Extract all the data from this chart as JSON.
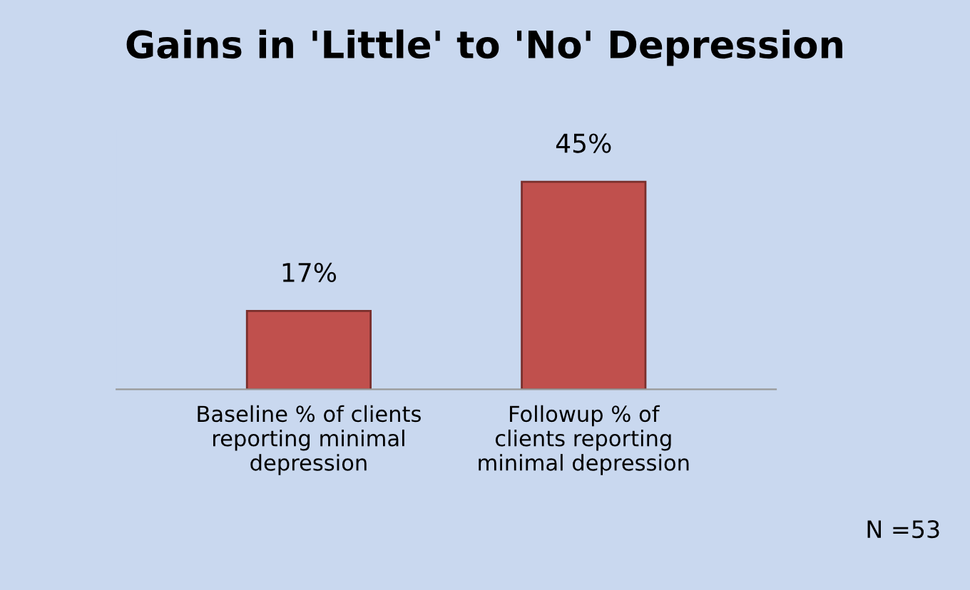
{
  "chart_data": {
    "type": "bar",
    "title": "Gains in 'Little' to 'No' Depression",
    "categories": [
      "Baseline % of clients\nreporting minimal\ndepression",
      "Followup % of\nclients reporting\nminimal depression"
    ],
    "values": [
      17,
      45
    ],
    "color": "#c0504d",
    "value_labels": [
      "17%",
      "45%"
    ],
    "annotations": [
      "N =53"
    ]
  }
}
